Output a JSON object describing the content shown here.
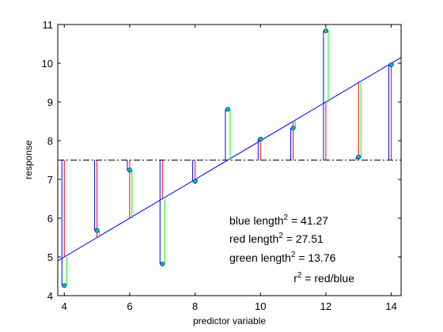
{
  "chart_data": {
    "type": "scatter",
    "title": "",
    "xlabel": "predictor variable",
    "ylabel": "response",
    "xlim": [
      3.8,
      14.3
    ],
    "ylim": [
      4,
      11
    ],
    "xticks": [
      4,
      6,
      8,
      10,
      12,
      14
    ],
    "yticks": [
      4,
      5,
      6,
      7,
      8,
      9,
      10,
      11
    ],
    "grid": false,
    "mean_y": 7.5,
    "regression": {
      "intercept": 3.0,
      "slope": 0.5
    },
    "points": [
      {
        "x": 4,
        "y": 4.26
      },
      {
        "x": 5,
        "y": 5.68
      },
      {
        "x": 6,
        "y": 7.24
      },
      {
        "x": 7,
        "y": 4.82
      },
      {
        "x": 8,
        "y": 6.95
      },
      {
        "x": 9,
        "y": 8.81
      },
      {
        "x": 10,
        "y": 8.04
      },
      {
        "x": 11,
        "y": 8.33
      },
      {
        "x": 12,
        "y": 10.84
      },
      {
        "x": 13,
        "y": 7.58
      },
      {
        "x": 14,
        "y": 9.96
      }
    ],
    "colors": {
      "blue": "#0000ff",
      "red": "#ff0000",
      "green": "#00ff00",
      "marker_fill": "#00bfbf",
      "mean_line": "#000000"
    },
    "annotations": [
      {
        "name": "annotation-blue-length",
        "base": "blue  length",
        "sup": "2",
        "rest": " = 41.27"
      },
      {
        "name": "annotation-red-length",
        "base": "red   length",
        "sup": "2",
        "rest": " = 27.51"
      },
      {
        "name": "annotation-green-length",
        "base": "green length",
        "sup": "2",
        "rest": " = 13.76"
      },
      {
        "name": "annotation-r-squared",
        "base": "r",
        "sup": "2",
        "rest": " = red/blue"
      }
    ]
  }
}
